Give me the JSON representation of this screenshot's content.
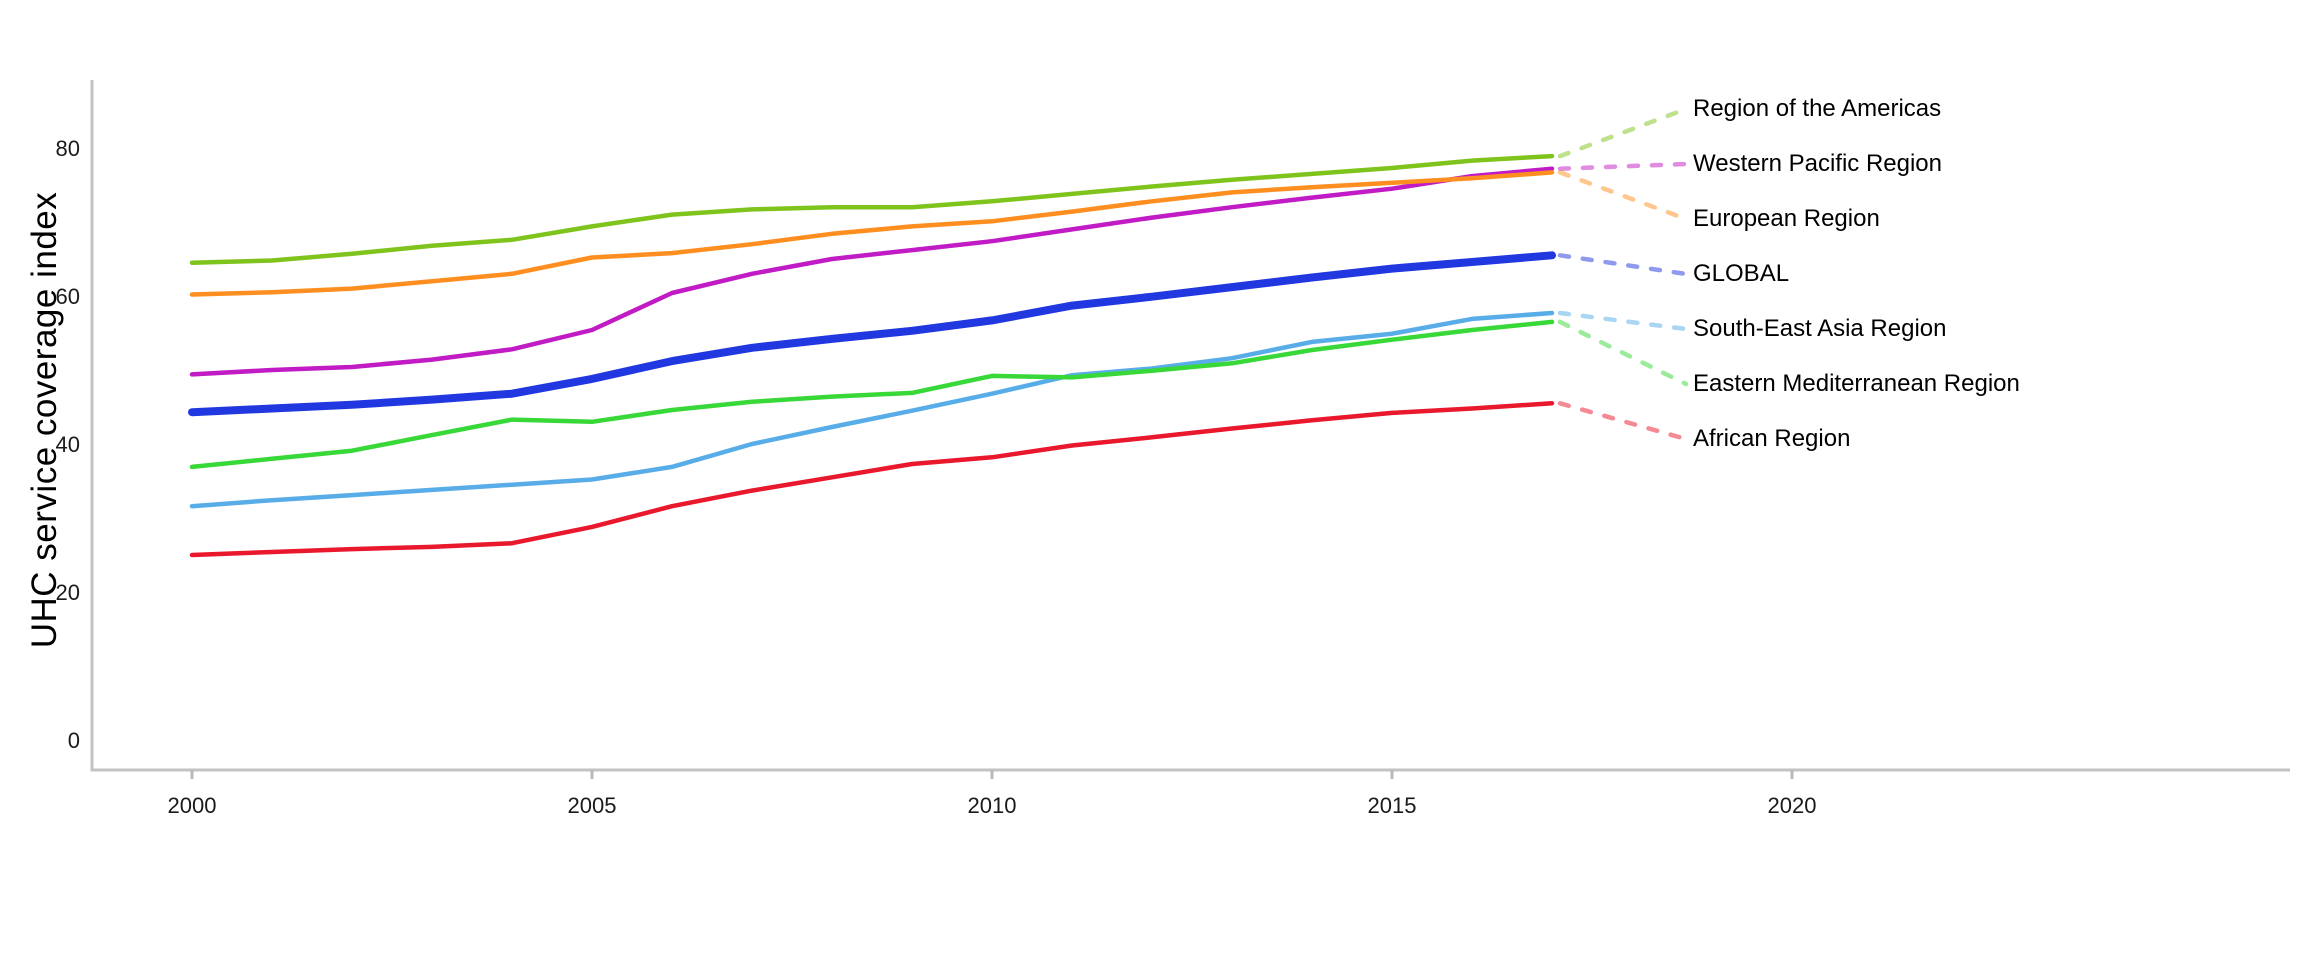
{
  "page": {
    "background": "#ffffff"
  },
  "chart_data": {
    "type": "line",
    "title": "",
    "xlabel": "",
    "ylabel": "UHC service coverage index",
    "grid": false,
    "legend_position": "right-edge-labels-with-dashed-leaders",
    "x": [
      2000,
      2001,
      2002,
      2003,
      2004,
      2005,
      2006,
      2007,
      2008,
      2009,
      2010,
      2011,
      2012,
      2013,
      2014,
      2015,
      2016,
      2017
    ],
    "x_ticks": [
      2000,
      2005,
      2010,
      2015,
      2020
    ],
    "x_tick_labels": [
      "2000",
      "2005",
      "2010",
      "2015",
      "2020"
    ],
    "y_ticks": [
      0,
      20,
      40,
      60,
      80
    ],
    "y_tick_labels": [
      "0",
      "20",
      "40",
      "60",
      "80"
    ],
    "xlim": [
      1998.75,
      2026.25
    ],
    "ylim": [
      0,
      89
    ],
    "series": [
      {
        "name": "Region of the Americas",
        "color": "#7FC41C",
        "emphasis": false,
        "values": [
          64.5,
          64.8,
          65.7,
          66.8,
          67.6,
          69.4,
          71.0,
          71.7,
          72.0,
          72.0,
          72.8,
          73.8,
          74.8,
          75.7,
          76.5,
          77.3,
          78.3,
          78.9
        ]
      },
      {
        "name": "Western Pacific Region",
        "color": "#C01BC4",
        "emphasis": false,
        "values": [
          49.4,
          50.0,
          50.4,
          51.4,
          52.8,
          55.4,
          60.4,
          63.0,
          65.0,
          66.2,
          67.4,
          69.0,
          70.6,
          72.0,
          73.3,
          74.5,
          76.2,
          77.2
        ]
      },
      {
        "name": "European Region",
        "color": "#FF8E20",
        "emphasis": false,
        "values": [
          60.2,
          60.5,
          61.0,
          62.0,
          63.0,
          65.2,
          65.8,
          67.0,
          68.4,
          69.4,
          70.1,
          71.4,
          72.8,
          74.0,
          74.7,
          75.3,
          75.9,
          76.7
        ]
      },
      {
        "name": "GLOBAL",
        "color": "#2138E0",
        "emphasis": true,
        "values": [
          44.3,
          44.8,
          45.3,
          46.0,
          46.8,
          48.8,
          51.2,
          53.0,
          54.2,
          55.3,
          56.7,
          58.7,
          59.9,
          61.2,
          62.5,
          63.7,
          64.6,
          65.5
        ]
      },
      {
        "name": "South-East Asia Region",
        "color": "#58ADE8",
        "emphasis": false,
        "values": [
          31.6,
          32.4,
          33.1,
          33.8,
          34.5,
          35.2,
          36.9,
          40.0,
          42.3,
          44.5,
          46.8,
          49.3,
          50.2,
          51.6,
          53.8,
          54.9,
          56.9,
          57.7
        ]
      },
      {
        "name": "Eastern Mediterranean Region",
        "color": "#38D838",
        "emphasis": false,
        "values": [
          36.9,
          38.0,
          39.1,
          41.2,
          43.3,
          43.0,
          44.6,
          45.7,
          46.4,
          46.9,
          49.2,
          49.0,
          49.9,
          50.9,
          52.7,
          54.1,
          55.4,
          56.5
        ]
      },
      {
        "name": "African Region",
        "color": "#E9182C",
        "emphasis": false,
        "values": [
          25.0,
          25.4,
          25.8,
          26.1,
          26.6,
          28.8,
          31.6,
          33.7,
          35.5,
          37.3,
          38.2,
          39.8,
          40.9,
          42.1,
          43.2,
          44.2,
          44.8,
          45.5
        ]
      }
    ]
  }
}
